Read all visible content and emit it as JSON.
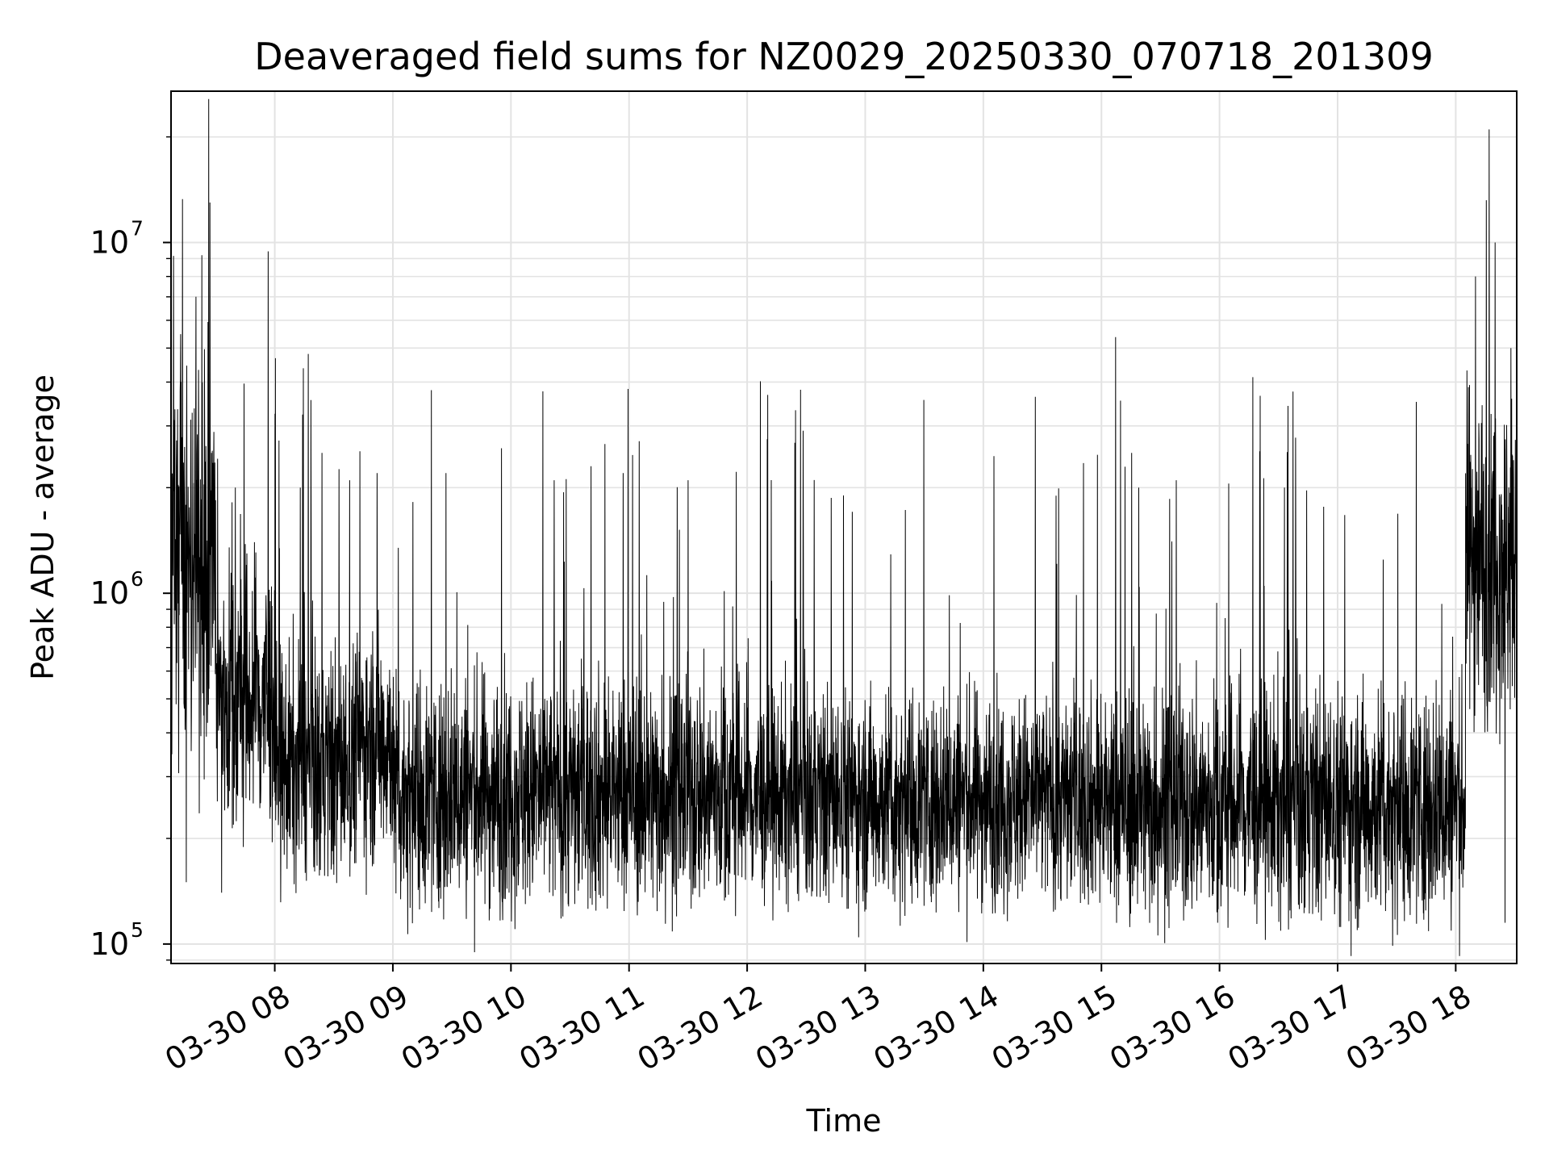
{
  "chart_data": {
    "type": "line",
    "title": "Deaveraged field sums for NZ0029_20250330_070718_201309",
    "xlabel": "Time",
    "ylabel": "Peak ADU - average",
    "x_start": "03-30 07:07:18",
    "x_end": "03-30 18:31",
    "x_ticks": [
      {
        "value": "03-30 08:00",
        "label": "03-30 08"
      },
      {
        "value": "03-30 09:00",
        "label": "03-30 09"
      },
      {
        "value": "03-30 10:00",
        "label": "03-30 10"
      },
      {
        "value": "03-30 11:00",
        "label": "03-30 11"
      },
      {
        "value": "03-30 12:00",
        "label": "03-30 12"
      },
      {
        "value": "03-30 13:00",
        "label": "03-30 13"
      },
      {
        "value": "03-30 14:00",
        "label": "03-30 14"
      },
      {
        "value": "03-30 15:00",
        "label": "03-30 15"
      },
      {
        "value": "03-30 16:00",
        "label": "03-30 16"
      },
      {
        "value": "03-30 17:00",
        "label": "03-30 17"
      },
      {
        "value": "03-30 18:00",
        "label": "03-30 18"
      }
    ],
    "yscale": "log",
    "ylim": [
      88000,
      27000000
    ],
    "y_ticks": [
      {
        "value": 100000,
        "base": "10",
        "exp": "5"
      },
      {
        "value": 1000000,
        "base": "10",
        "exp": "6"
      },
      {
        "value": 10000000,
        "base": "10",
        "exp": "7"
      }
    ],
    "grid": true,
    "series": [
      {
        "color": "#000000",
        "linewidth": 1,
        "segments": [
          {
            "start": "03-30 07:07",
            "end": "03-30 07:30",
            "baseline": 1200000,
            "spread": 0.8
          },
          {
            "start": "03-30 07:30",
            "end": "03-30 08:00",
            "baseline": 500000,
            "spread": 0.6
          },
          {
            "start": "03-30 08:00",
            "end": "03-30 08:40",
            "baseline": 320000,
            "spread": 0.5
          },
          {
            "start": "03-30 08:40",
            "end": "03-30 09:00",
            "baseline": 380000,
            "spread": 0.5
          },
          {
            "start": "03-30 09:00",
            "end": "03-30 12:00",
            "baseline": 270000,
            "spread": 0.5
          },
          {
            "start": "03-30 12:00",
            "end": "03-30 15:00",
            "baseline": 260000,
            "spread": 0.45
          },
          {
            "start": "03-30 15:00",
            "end": "03-30 18:05",
            "baseline": 250000,
            "spread": 0.5
          },
          {
            "start": "03-30 18:05",
            "end": "03-30 18:31",
            "baseline": 1300000,
            "spread": 0.7
          }
        ],
        "peaks": [
          {
            "x": "03-30 07:12",
            "y": 4100000
          },
          {
            "x": "03-30 07:20",
            "y": 7000000
          },
          {
            "x": "03-30 07:23",
            "y": 9200000
          },
          {
            "x": "03-30 07:27",
            "y": 13000000
          },
          {
            "x": "03-30 07:40",
            "y": 2000000
          },
          {
            "x": "03-30 08:13",
            "y": 2000000
          },
          {
            "x": "03-30 08:38",
            "y": 2100000
          },
          {
            "x": "03-30 08:52",
            "y": 2200000
          },
          {
            "x": "03-30 09:27",
            "y": 2200000
          },
          {
            "x": "03-30 10:22",
            "y": 2100000
          },
          {
            "x": "03-30 10:57",
            "y": 2200000
          },
          {
            "x": "03-30 11:30",
            "y": 2100000
          },
          {
            "x": "03-30 12:49",
            "y": 1900000
          },
          {
            "x": "03-30 15:19",
            "y": 2000000
          },
          {
            "x": "03-30 15:38",
            "y": 2100000
          },
          {
            "x": "03-30 16:33",
            "y": 2000000
          },
          {
            "x": "03-30 18:10",
            "y": 8000000
          },
          {
            "x": "03-30 18:17",
            "y": 21000000
          },
          {
            "x": "03-30 18:20",
            "y": 10000000
          },
          {
            "x": "03-30 18:28",
            "y": 5000000
          }
        ],
        "troughs": [
          {
            "x": "03-30 07:15",
            "y": 150000
          },
          {
            "x": "03-30 07:33",
            "y": 140000
          },
          {
            "x": "03-30 13:15",
            "y": 132000
          },
          {
            "x": "03-30 15:59",
            "y": 115000
          },
          {
            "x": "03-30 16:35",
            "y": 110000
          },
          {
            "x": "03-30 18:25",
            "y": 115000
          }
        ]
      }
    ]
  }
}
